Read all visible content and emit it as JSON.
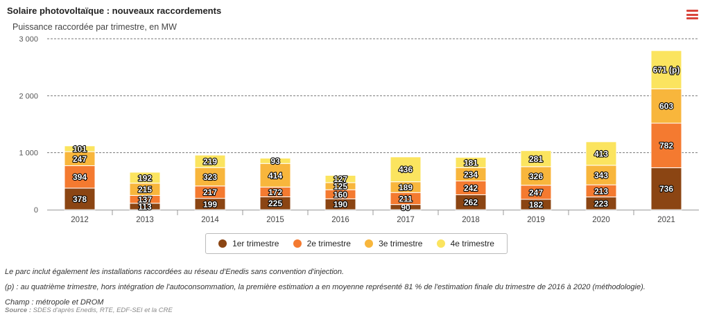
{
  "title": "Solaire photovoltaïque : nouveaux raccordements",
  "subtitle": "Puissance raccordée par trimestre, en MW",
  "menu_icon": "hamburger-menu-icon",
  "colors": {
    "q1": "#8b4513",
    "q2": "#f47a30",
    "q3": "#f8b63c",
    "q4": "#fbe45f",
    "menu": "#d9453b"
  },
  "chart_data": {
    "type": "bar",
    "stacked": true,
    "categories": [
      "2012",
      "2013",
      "2014",
      "2015",
      "2016",
      "2017",
      "2018",
      "2019",
      "2020",
      "2021"
    ],
    "series": [
      {
        "name": "1er trimestre",
        "values": [
          378,
          113,
          199,
          225,
          190,
          90,
          262,
          182,
          223,
          736
        ],
        "labels": [
          "378",
          "113",
          "199",
          "225",
          "190",
          "90",
          "262",
          "182",
          "223",
          "736"
        ]
      },
      {
        "name": "2e trimestre",
        "values": [
          394,
          137,
          217,
          172,
          160,
          211,
          242,
          247,
          213,
          782
        ],
        "labels": [
          "394",
          "137",
          "217",
          "172",
          "160",
          "211",
          "242",
          "247",
          "213",
          "782"
        ]
      },
      {
        "name": "3e trimestre",
        "values": [
          247,
          215,
          323,
          414,
          125,
          189,
          234,
          326,
          343,
          603
        ],
        "labels": [
          "247",
          "215",
          "323",
          "414",
          "125",
          "189",
          "234",
          "326",
          "343",
          "603"
        ]
      },
      {
        "name": "4e trimestre",
        "values": [
          101,
          192,
          219,
          93,
          127,
          436,
          181,
          281,
          413,
          671
        ],
        "labels": [
          "101",
          "192",
          "219",
          "93",
          "127",
          "436",
          "181",
          "281",
          "413",
          "671 (p)"
        ]
      }
    ],
    "yticks": [
      "0",
      "1 000",
      "2 000",
      "3 000"
    ],
    "ytick_values": [
      0,
      1000,
      2000,
      3000
    ],
    "ylim": [
      0,
      3000
    ],
    "grid": "dashed horizontal",
    "legend": "bottom"
  },
  "notes": [
    "Le parc inclut également les installations raccordées au réseau d'Enedis sans convention d'injection.",
    "(p) : au quatrième trimestre, hors intégration de l'autoconsommation, la première estimation a en moyenne représenté 81 % de l'estimation finale du trimestre de 2016 à 2020 (méthodologie).",
    "Champ : métropole et DROM"
  ],
  "source_label": "Source :",
  "source_text": "SDES d'après Enedis, RTE, EDF-SEI et la CRE"
}
